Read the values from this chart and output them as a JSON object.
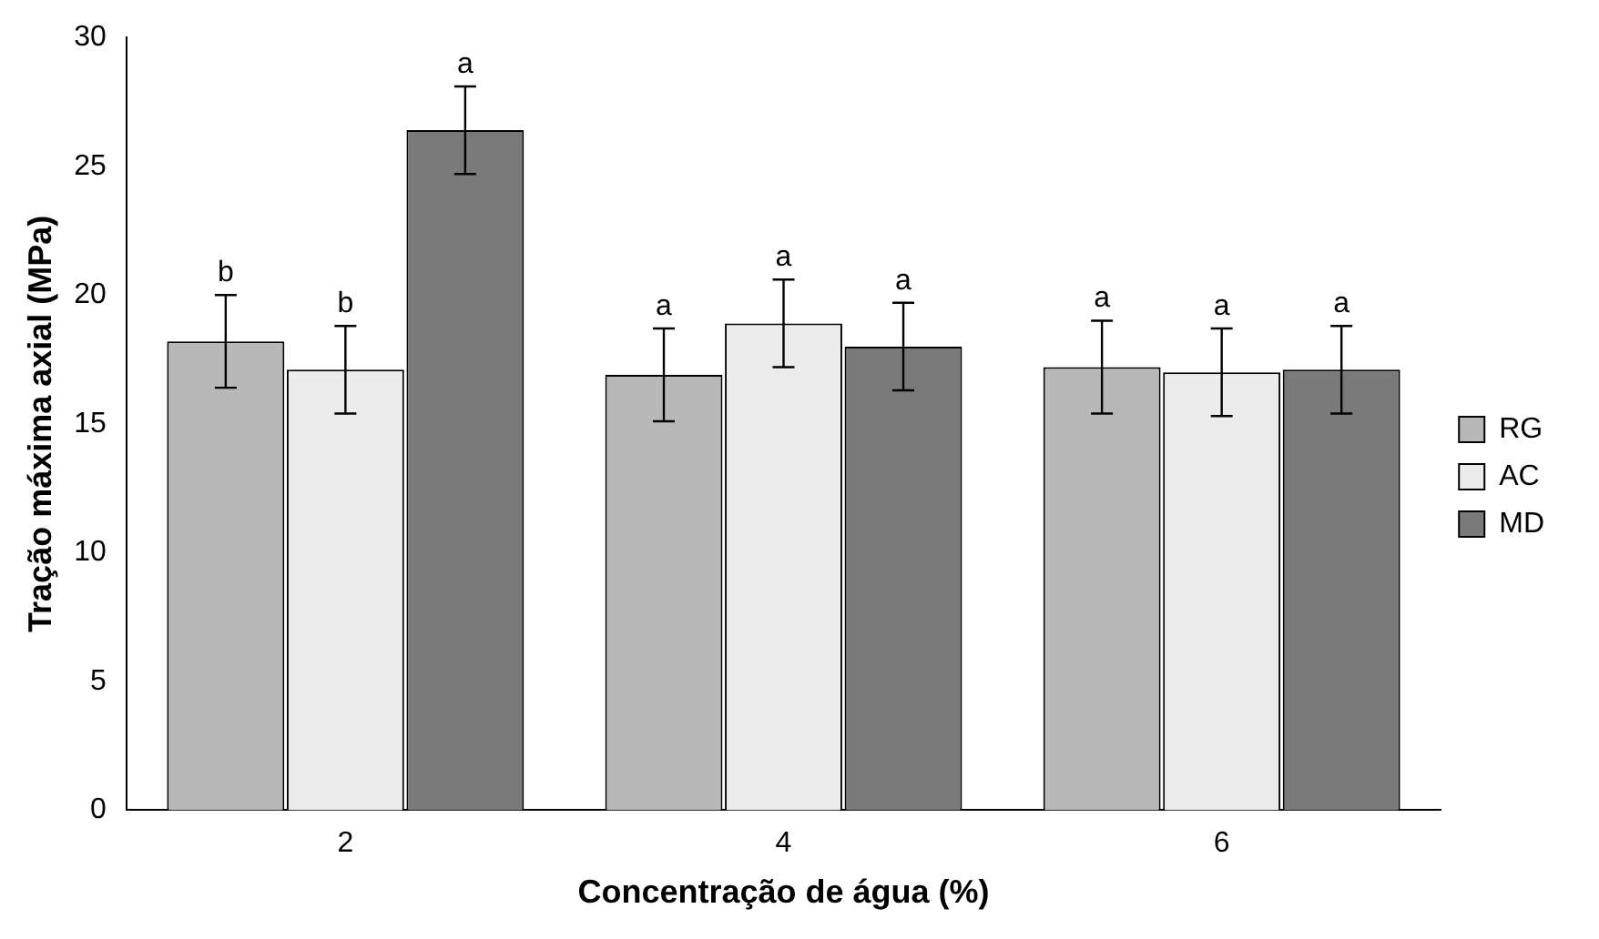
{
  "chart_data": {
    "type": "bar",
    "xlabel": "Concentração de água (%)",
    "ylabel": "Tração máxima axial (MPa)",
    "categories": [
      "2",
      "4",
      "6"
    ],
    "series": [
      {
        "name": "RG",
        "color": "#b8b8b8",
        "values": [
          18.2,
          16.9,
          17.2
        ],
        "errors": [
          1.8,
          1.8,
          1.8
        ],
        "value_labels": [
          "b",
          "a",
          "a"
        ]
      },
      {
        "name": "AC",
        "color": "#ececec",
        "values": [
          17.1,
          18.9,
          17.0
        ],
        "errors": [
          1.7,
          1.7,
          1.7
        ],
        "value_labels": [
          "b",
          "a",
          "a"
        ]
      },
      {
        "name": "MD",
        "color": "#7a7a7a",
        "values": [
          26.4,
          18.0,
          17.1
        ],
        "errors": [
          1.7,
          1.7,
          1.7
        ],
        "value_labels": [
          "a",
          "a",
          "a"
        ]
      }
    ],
    "ylim": [
      0,
      30
    ],
    "yticks": [
      0,
      5,
      10,
      15,
      20,
      25,
      30
    ],
    "grid": false,
    "legend": "right"
  }
}
